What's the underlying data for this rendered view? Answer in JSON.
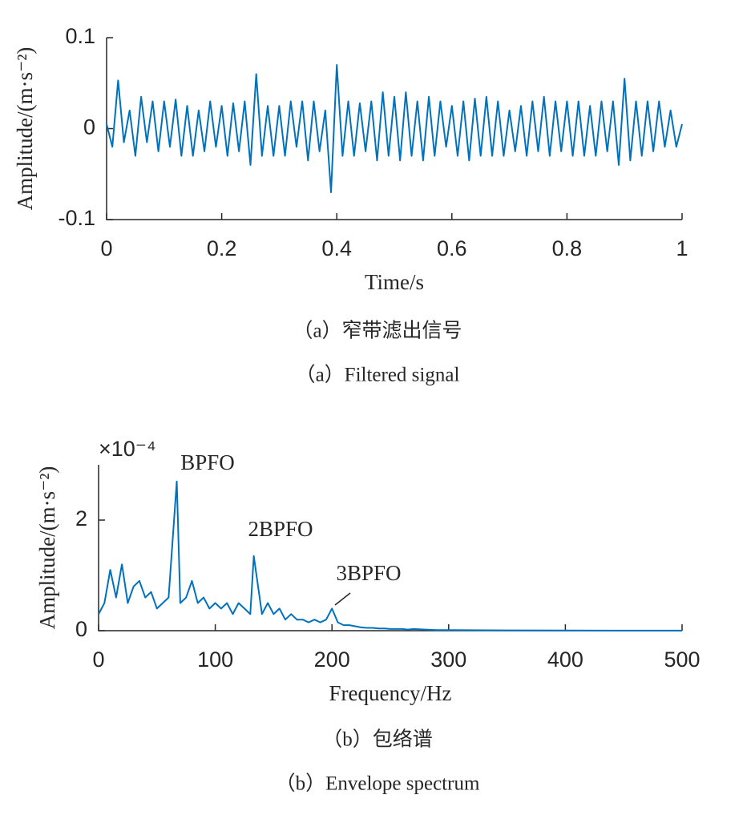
{
  "chart_data": [
    {
      "type": "line",
      "xlabel": "Time/s",
      "ylabel": "Amplitude/(m·s⁻²)",
      "xlim": [
        0,
        1
      ],
      "ylim": [
        -0.1,
        0.1
      ],
      "xticks": [
        0,
        0.2,
        0.4,
        0.6,
        0.8,
        1
      ],
      "yticks": [
        -0.1,
        0,
        0.1
      ],
      "series": [
        {
          "color": "#0072bd",
          "x": [
            0,
            0.01,
            0.02,
            0.03,
            0.04,
            0.05,
            0.06,
            0.07,
            0.08,
            0.09,
            0.1,
            0.11,
            0.12,
            0.13,
            0.14,
            0.15,
            0.16,
            0.17,
            0.18,
            0.19,
            0.2,
            0.21,
            0.22,
            0.23,
            0.24,
            0.25,
            0.26,
            0.27,
            0.28,
            0.29,
            0.3,
            0.31,
            0.32,
            0.33,
            0.34,
            0.35,
            0.36,
            0.37,
            0.38,
            0.39,
            0.4,
            0.41,
            0.42,
            0.43,
            0.44,
            0.45,
            0.46,
            0.47,
            0.48,
            0.49,
            0.5,
            0.51,
            0.52,
            0.53,
            0.54,
            0.55,
            0.56,
            0.57,
            0.58,
            0.59,
            0.6,
            0.61,
            0.62,
            0.63,
            0.64,
            0.65,
            0.66,
            0.67,
            0.68,
            0.69,
            0.7,
            0.71,
            0.72,
            0.73,
            0.74,
            0.75,
            0.76,
            0.77,
            0.78,
            0.79,
            0.8,
            0.81,
            0.82,
            0.83,
            0.84,
            0.85,
            0.86,
            0.87,
            0.88,
            0.89,
            0.9,
            0.91,
            0.92,
            0.93,
            0.94,
            0.95,
            0.96,
            0.97,
            0.98,
            0.99,
            1
          ],
          "values": [
            0.005,
            -0.02,
            0.053,
            -0.015,
            0.02,
            -0.03,
            0.035,
            -0.015,
            0.03,
            -0.025,
            0.03,
            -0.02,
            0.032,
            -0.03,
            0.025,
            -0.03,
            0.02,
            -0.025,
            0.03,
            -0.02,
            0.025,
            -0.03,
            0.028,
            -0.025,
            0.03,
            -0.04,
            0.06,
            -0.03,
            0.025,
            -0.03,
            0.025,
            -0.03,
            0.03,
            -0.02,
            0.03,
            -0.035,
            0.03,
            -0.025,
            0.02,
            -0.07,
            0.07,
            -0.03,
            0.03,
            -0.03,
            0.028,
            -0.025,
            0.03,
            -0.035,
            0.04,
            -0.03,
            0.035,
            -0.035,
            0.04,
            -0.03,
            0.03,
            -0.035,
            0.035,
            -0.03,
            0.03,
            -0.02,
            0.025,
            -0.03,
            0.03,
            -0.035,
            0.033,
            -0.03,
            0.035,
            -0.03,
            0.03,
            -0.03,
            0.02,
            -0.025,
            0.025,
            -0.03,
            0.03,
            -0.025,
            0.035,
            -0.03,
            0.03,
            -0.025,
            0.03,
            -0.03,
            0.03,
            -0.03,
            0.025,
            -0.03,
            0.03,
            -0.025,
            0.03,
            -0.04,
            0.055,
            -0.035,
            0.03,
            -0.03,
            0.03,
            -0.025,
            0.03,
            -0.02,
            0.02,
            -0.02,
            0.005
          ]
        }
      ]
    },
    {
      "type": "line",
      "xlabel": "Frequency/Hz",
      "ylabel": "Amplitude/(m·s⁻²)",
      "multiplier": "×10⁻⁴",
      "xlim": [
        0,
        500
      ],
      "ylim": [
        0,
        3
      ],
      "xticks": [
        0,
        100,
        200,
        300,
        400,
        500
      ],
      "yticks": [
        0,
        2
      ],
      "annotations": [
        "BPFO",
        "2BPFO",
        "3BPFO"
      ],
      "series": [
        {
          "color": "#0072bd",
          "x": [
            0,
            5,
            10,
            15,
            20,
            25,
            30,
            35,
            40,
            45,
            50,
            55,
            60,
            67,
            70,
            75,
            80,
            85,
            90,
            95,
            100,
            105,
            110,
            115,
            120,
            125,
            130,
            133,
            140,
            145,
            150,
            155,
            160,
            165,
            170,
            175,
            180,
            185,
            190,
            195,
            200,
            205,
            210,
            215,
            220,
            225,
            230,
            235,
            240,
            245,
            250,
            255,
            260,
            265,
            270,
            280,
            290,
            300,
            350,
            400,
            450,
            500
          ],
          "values": [
            0.3,
            0.5,
            1.1,
            0.6,
            1.2,
            0.5,
            0.8,
            0.9,
            0.6,
            0.7,
            0.4,
            0.5,
            0.6,
            2.7,
            0.5,
            0.6,
            0.9,
            0.5,
            0.6,
            0.4,
            0.5,
            0.4,
            0.5,
            0.3,
            0.5,
            0.4,
            0.3,
            1.35,
            0.3,
            0.5,
            0.3,
            0.4,
            0.2,
            0.3,
            0.2,
            0.2,
            0.15,
            0.2,
            0.15,
            0.2,
            0.4,
            0.15,
            0.1,
            0.1,
            0.08,
            0.06,
            0.05,
            0.05,
            0.04,
            0.04,
            0.03,
            0.03,
            0.03,
            0.02,
            0.03,
            0.02,
            0.01,
            0.01,
            0.005,
            0.003,
            0.002,
            0.002
          ]
        }
      ]
    }
  ],
  "captions": [
    "（a）窄带滤出信号",
    "（a）Filtered signal",
    "（b）包络谱",
    "（b）Envelope spectrum"
  ]
}
